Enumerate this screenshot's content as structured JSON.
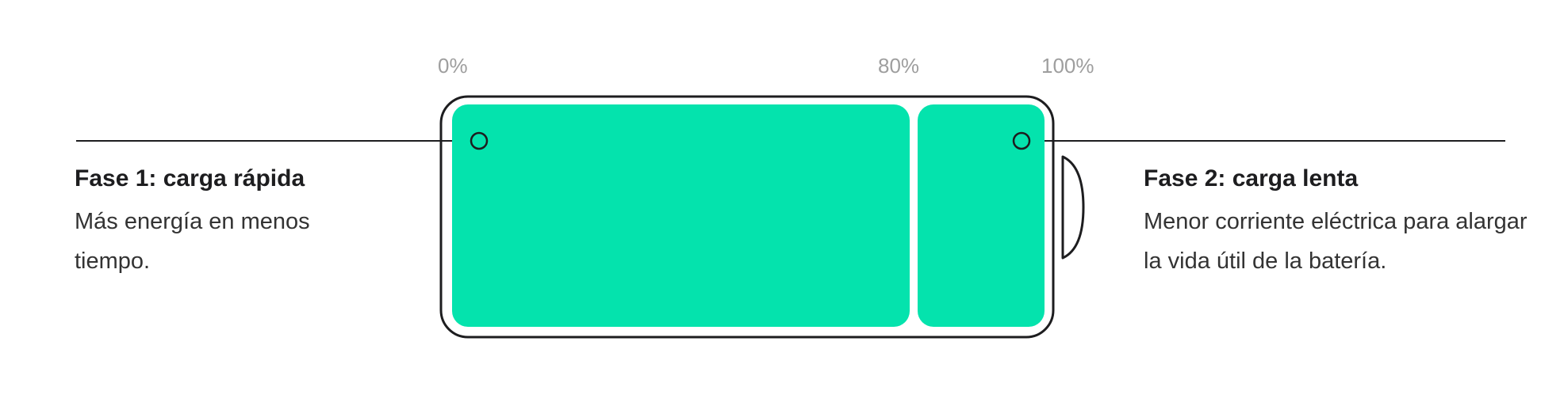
{
  "ticks": {
    "start": "0%",
    "mid": "80%",
    "end": "100%"
  },
  "phases": [
    {
      "title": "Fase 1: carga rápida",
      "description": "Más energía en menos tiempo."
    },
    {
      "title": "Fase 2: carga lenta",
      "description": "Menor corriente eléctrica para alargar la vida útil de la batería."
    }
  ],
  "colors": {
    "fill": "#04e3ad",
    "outline": "#1d1d1f",
    "tick_text": "#9e9e9e",
    "background": "#ffffff"
  },
  "battery": {
    "fast_phase_end": 0.8
  }
}
